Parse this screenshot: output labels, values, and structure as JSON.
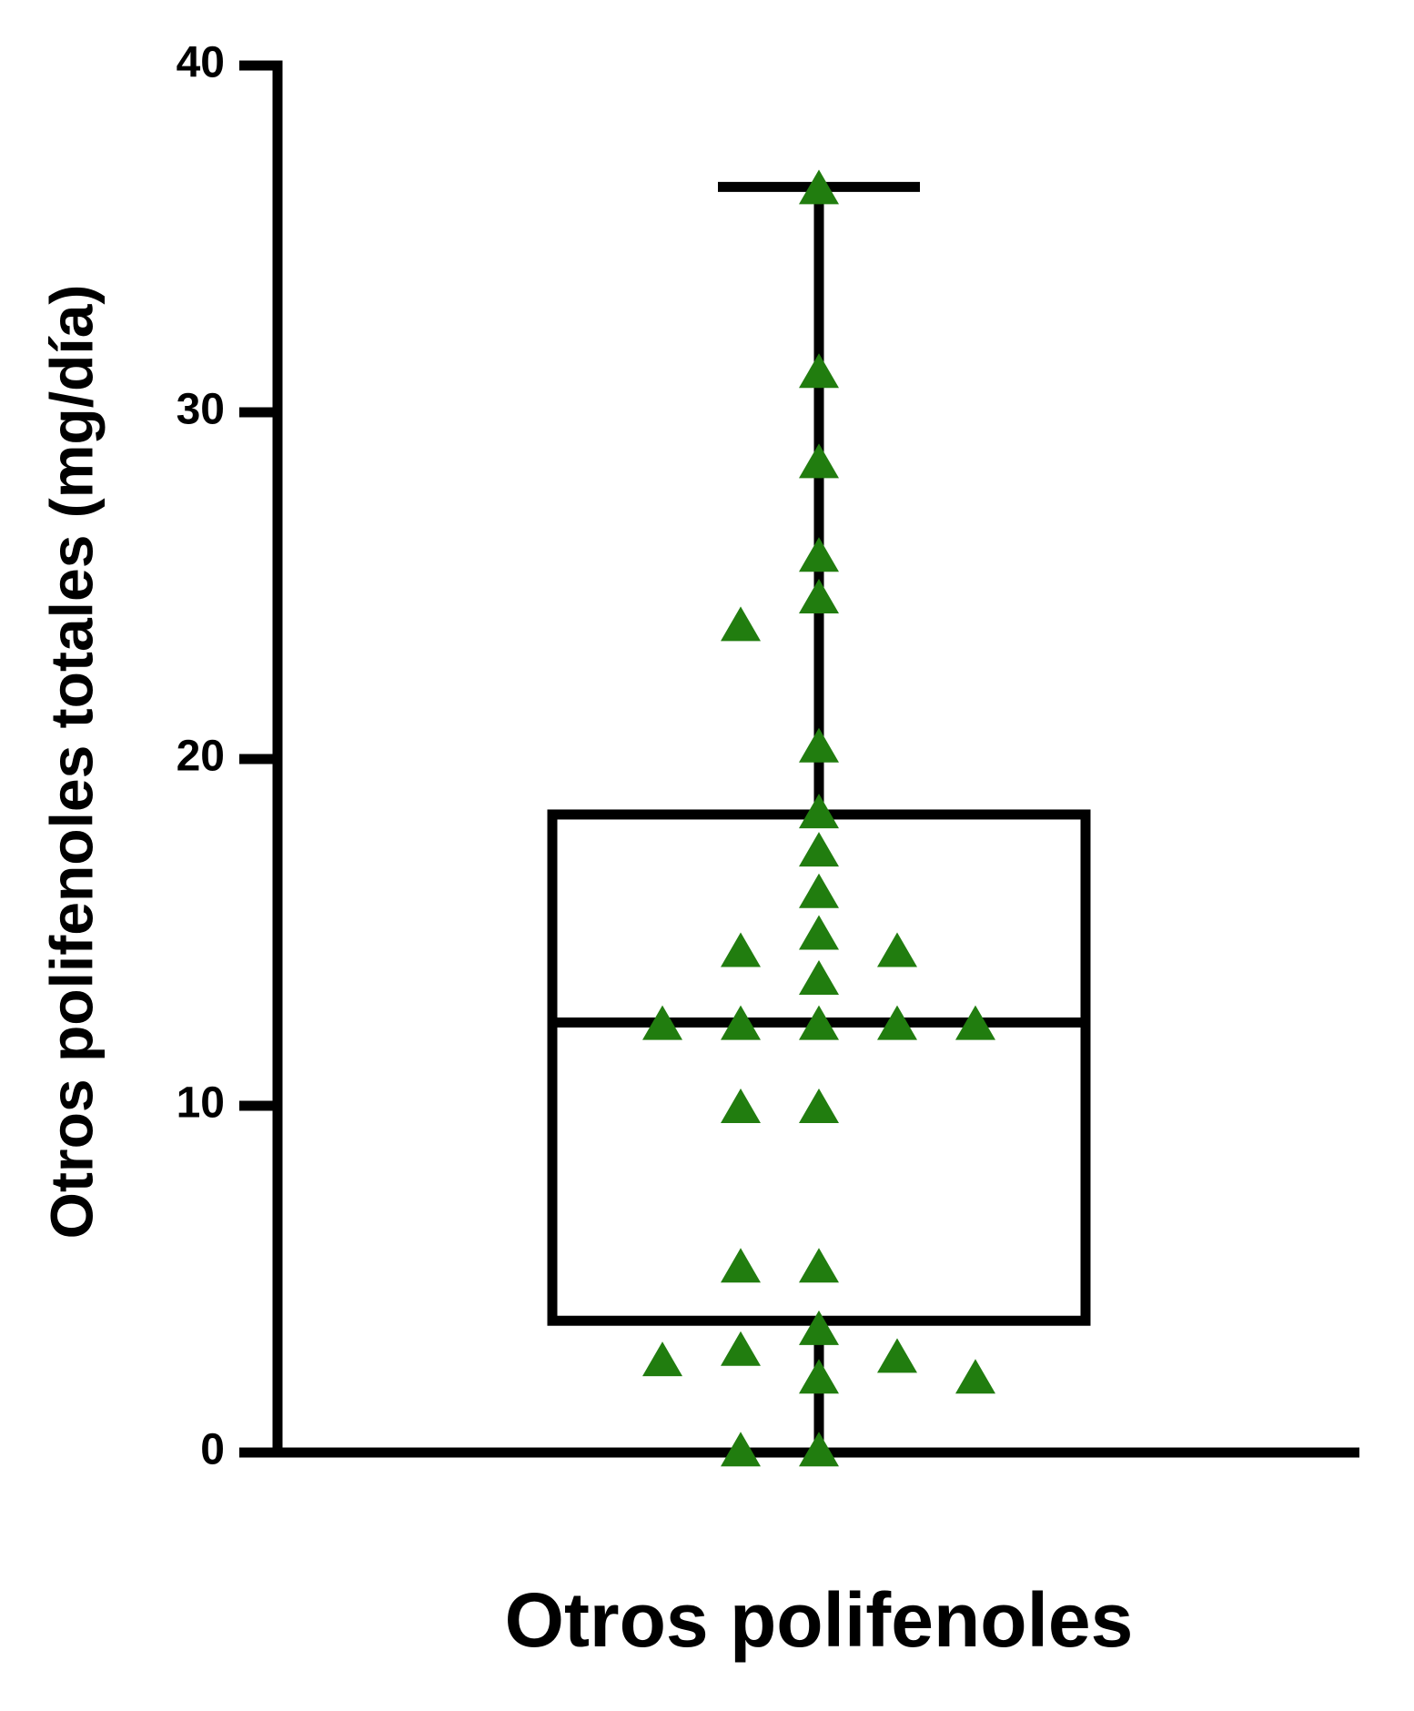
{
  "chart_data": {
    "type": "box",
    "ylabel": "Otros polifenoles totales (mg/día)",
    "categories": [
      "Otros polifenoles"
    ],
    "min": 0,
    "q1": 3.8,
    "median": 12.4,
    "q3": 18.4,
    "max": 36.5,
    "points": [
      36.4,
      31.1,
      28.5,
      25.8,
      24.6,
      23.8,
      20.3,
      18.4,
      17.3,
      16.1,
      14.9,
      14.4,
      14.4,
      13.6,
      12.3,
      12.3,
      12.3,
      12.3,
      12.3,
      9.9,
      9.9,
      5.3,
      5.3,
      3.5,
      2.9,
      2.7,
      2.6,
      2.1,
      2.1,
      0,
      0
    ],
    "color": "#217d0f",
    "ylim": [
      0,
      40
    ],
    "yticks": [
      0,
      10,
      20,
      30,
      40
    ]
  }
}
